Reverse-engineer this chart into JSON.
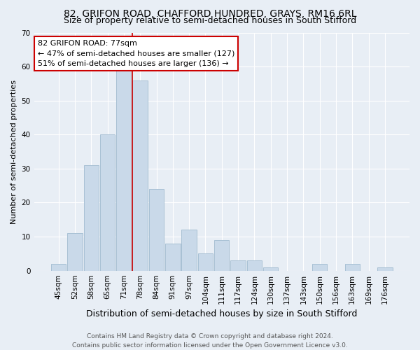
{
  "title": "82, GRIFON ROAD, CHAFFORD HUNDRED, GRAYS, RM16 6RL",
  "subtitle": "Size of property relative to semi-detached houses in South Stifford",
  "xlabel": "Distribution of semi-detached houses by size in South Stifford",
  "ylabel": "Number of semi-detached properties",
  "categories": [
    "45sqm",
    "52sqm",
    "58sqm",
    "65sqm",
    "71sqm",
    "78sqm",
    "84sqm",
    "91sqm",
    "97sqm",
    "104sqm",
    "111sqm",
    "117sqm",
    "124sqm",
    "130sqm",
    "137sqm",
    "143sqm",
    "150sqm",
    "156sqm",
    "163sqm",
    "169sqm",
    "176sqm"
  ],
  "values": [
    2,
    11,
    31,
    40,
    59,
    56,
    24,
    8,
    12,
    5,
    9,
    3,
    3,
    1,
    0,
    0,
    2,
    0,
    2,
    0,
    1
  ],
  "bar_color": "#c9d9e9",
  "bar_edge_color": "#a8c0d4",
  "annotation_text_line1": "82 GRIFON ROAD: 77sqm",
  "annotation_text_line2": "← 47% of semi-detached houses are smaller (127)",
  "annotation_text_line3": "51% of semi-detached houses are larger (136) →",
  "annotation_box_color": "#ffffff",
  "annotation_box_edge_color": "#cc0000",
  "vline_color": "#cc0000",
  "vline_index": 4.5,
  "ylim": [
    0,
    70
  ],
  "yticks": [
    0,
    10,
    20,
    30,
    40,
    50,
    60,
    70
  ],
  "background_color": "#e8eef5",
  "axes_bg_color": "#e8eef5",
  "footer_line1": "Contains HM Land Registry data © Crown copyright and database right 2024.",
  "footer_line2": "Contains public sector information licensed under the Open Government Licence v3.0.",
  "title_fontsize": 10,
  "subtitle_fontsize": 9,
  "xlabel_fontsize": 9,
  "ylabel_fontsize": 8,
  "tick_fontsize": 7.5,
  "footer_fontsize": 6.5,
  "annotation_fontsize": 8
}
